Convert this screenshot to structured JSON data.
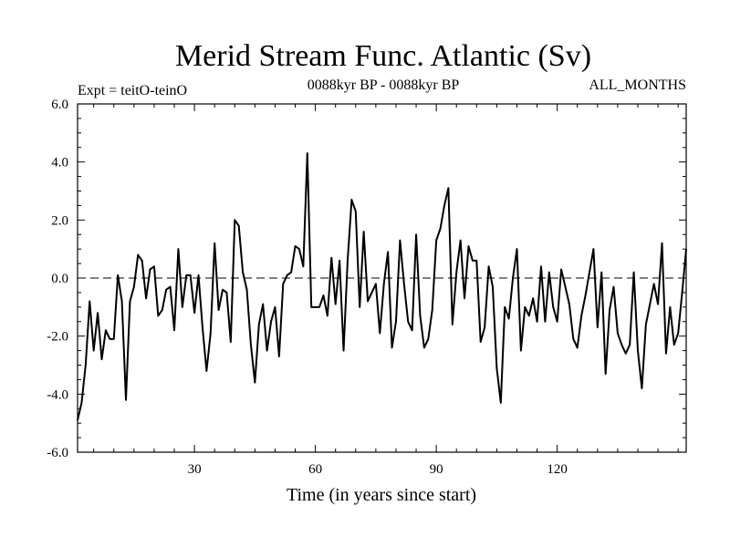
{
  "chart_data": {
    "type": "line",
    "title": "Merid Stream Func. Atlantic (Sv)",
    "subtitle_left": "Expt = teitO-teinO",
    "subtitle_center": "0088kyr BP - 0088kyr BP",
    "subtitle_right": "ALL_MONTHS",
    "xlabel": "Time (in years since start)",
    "ylabel": "",
    "xlim": [
      1,
      152
    ],
    "ylim": [
      -6,
      6
    ],
    "xticks": [
      30,
      60,
      90,
      120
    ],
    "yticks": [
      -6,
      -4,
      -2,
      0,
      2,
      4,
      6
    ],
    "ytick_labels": [
      "-6.0",
      "-4.0",
      "-2.0",
      "0.0",
      "2.0",
      "4.0",
      "6.0"
    ],
    "xtick_labels": [
      "30",
      "60",
      "90",
      "120"
    ],
    "reference_line": 0,
    "series": [
      {
        "name": "teitO-teinO",
        "color": "#000000",
        "x": [
          1,
          2,
          3,
          4,
          5,
          6,
          7,
          8,
          9,
          10,
          11,
          12,
          13,
          14,
          15,
          16,
          17,
          18,
          19,
          20,
          21,
          22,
          23,
          24,
          25,
          26,
          27,
          28,
          29,
          30,
          31,
          32,
          33,
          34,
          35,
          36,
          37,
          38,
          39,
          40,
          41,
          42,
          43,
          44,
          45,
          46,
          47,
          48,
          49,
          50,
          51,
          52,
          53,
          54,
          55,
          56,
          57,
          58,
          59,
          60,
          61,
          62,
          63,
          64,
          65,
          66,
          67,
          68,
          69,
          70,
          71,
          72,
          73,
          74,
          75,
          76,
          77,
          78,
          79,
          80,
          81,
          82,
          83,
          84,
          85,
          86,
          87,
          88,
          89,
          90,
          91,
          92,
          93,
          94,
          95,
          96,
          97,
          98,
          99,
          100,
          101,
          102,
          103,
          104,
          105,
          106,
          107,
          108,
          109,
          110,
          111,
          112,
          113,
          114,
          115,
          116,
          117,
          118,
          119,
          120,
          121,
          122,
          123,
          124,
          125,
          126,
          127,
          128,
          129,
          130,
          131,
          132,
          133,
          134,
          135,
          136,
          137,
          138,
          139,
          140,
          141,
          142,
          143,
          144,
          145,
          146,
          147,
          148,
          149,
          150,
          151,
          152
        ],
        "values": [
          -4.9,
          -4.3,
          -3.0,
          -0.8,
          -2.5,
          -1.2,
          -2.8,
          -1.8,
          -2.1,
          -2.1,
          0.1,
          -0.8,
          -4.2,
          -0.8,
          -0.3,
          0.8,
          0.6,
          -0.7,
          0.3,
          0.4,
          -1.3,
          -1.1,
          -0.4,
          -0.3,
          -1.8,
          1.0,
          -1.0,
          0.1,
          0.1,
          -1.2,
          0.1,
          -1.7,
          -3.2,
          -1.9,
          1.2,
          -1.1,
          -0.4,
          -0.5,
          -2.2,
          2.0,
          1.8,
          0.2,
          -0.4,
          -2.3,
          -3.6,
          -1.6,
          -0.9,
          -2.5,
          -1.5,
          -1.0,
          -2.7,
          -0.2,
          0.1,
          0.2,
          1.1,
          1.0,
          0.4,
          4.3,
          -1.0,
          -1.0,
          -1.0,
          -0.6,
          -1.3,
          0.7,
          -0.9,
          0.6,
          -2.5,
          0.6,
          2.7,
          2.3,
          -1.0,
          1.6,
          -0.8,
          -0.5,
          -0.2,
          -1.9,
          -0.2,
          0.9,
          -2.4,
          -1.5,
          1.3,
          -0.2,
          -1.5,
          -1.8,
          1.5,
          -1.3,
          -2.4,
          -2.1,
          -1.1,
          1.3,
          1.7,
          2.5,
          3.1,
          -1.6,
          0.2,
          1.3,
          -0.7,
          1.1,
          0.6,
          0.6,
          -2.2,
          -1.7,
          0.4,
          -0.3,
          -3.1,
          -4.3,
          -1.0,
          -1.4,
          0.0,
          1.0,
          -2.5,
          -1.0,
          -1.3,
          -0.7,
          -1.5,
          0.4,
          -1.5,
          0.2,
          -1.0,
          -1.5,
          0.3,
          -0.3,
          -0.9,
          -2.1,
          -2.4,
          -1.3,
          -0.6,
          0.2,
          1.0,
          -1.7,
          0.2,
          -3.3,
          -1.1,
          -0.3,
          -1.9,
          -2.3,
          -2.6,
          -2.3,
          0.2,
          -2.5,
          -3.8,
          -1.6,
          -0.9,
          -0.2,
          -0.9,
          1.2,
          -2.6,
          -1.0,
          -2.3,
          -1.9,
          -0.5,
          1.0
        ]
      }
    ]
  }
}
